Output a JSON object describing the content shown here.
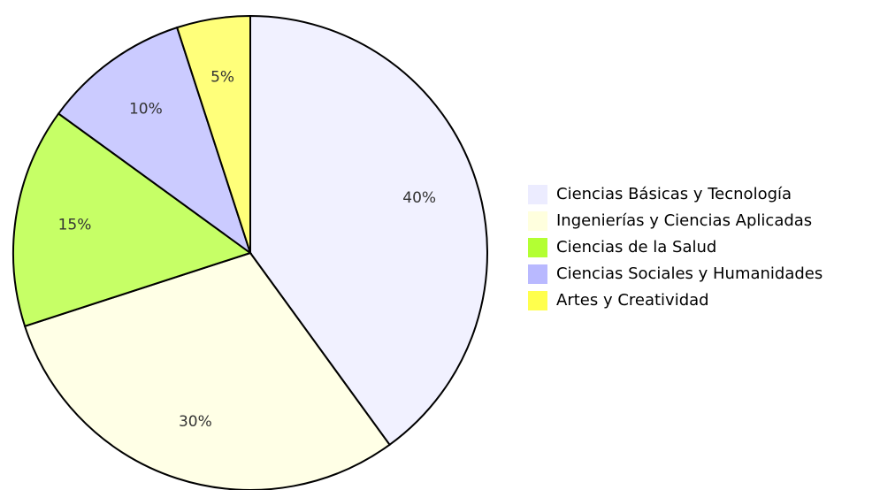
{
  "chart_data": {
    "type": "pie",
    "categories": [
      "Ciencias Básicas y Tecnología",
      "Ingenierías y Ciencias Aplicadas",
      "Ciencias de la Salud",
      "Ciencias Sociales y Humanidades",
      "Artes y Creatividad"
    ],
    "values": [
      40,
      30,
      15,
      10,
      5
    ],
    "value_labels": [
      "40%",
      "30%",
      "15%",
      "10%",
      "5%"
    ],
    "colors": [
      "#ececff",
      "#ffffde",
      "#b3ff33",
      "#b9b9ff",
      "#ffff4d"
    ],
    "legend": "right"
  }
}
